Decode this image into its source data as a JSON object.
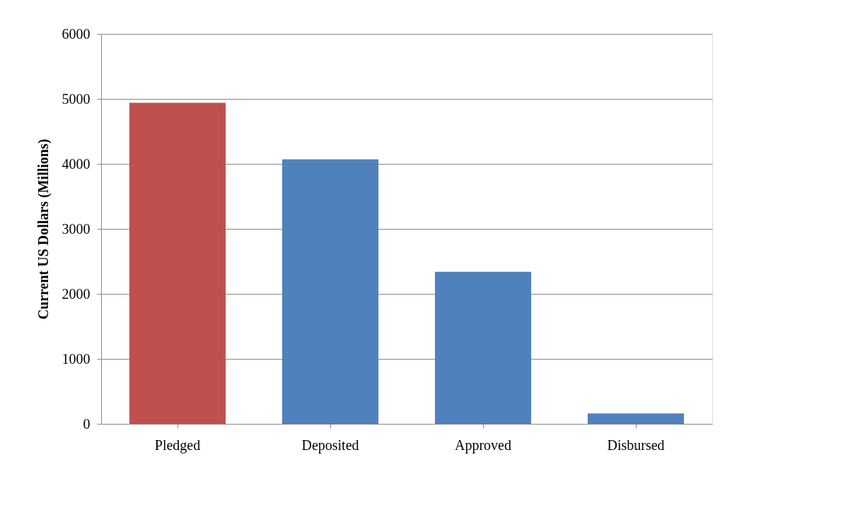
{
  "chart_data": {
    "type": "bar",
    "ylabel": "Current US Dollars (Millions)",
    "categories": [
      "Pledged",
      "Deposited",
      "Approved",
      "Disbursed"
    ],
    "values": [
      4940,
      4070,
      2340,
      160
    ],
    "colors": [
      "#c0504d",
      "#4f81bd",
      "#4f81bd",
      "#4f81bd"
    ],
    "ylim": [
      0,
      6000
    ],
    "yticks": [
      0,
      1000,
      2000,
      3000,
      4000,
      5000,
      6000
    ],
    "grid": "y",
    "legend": false
  }
}
